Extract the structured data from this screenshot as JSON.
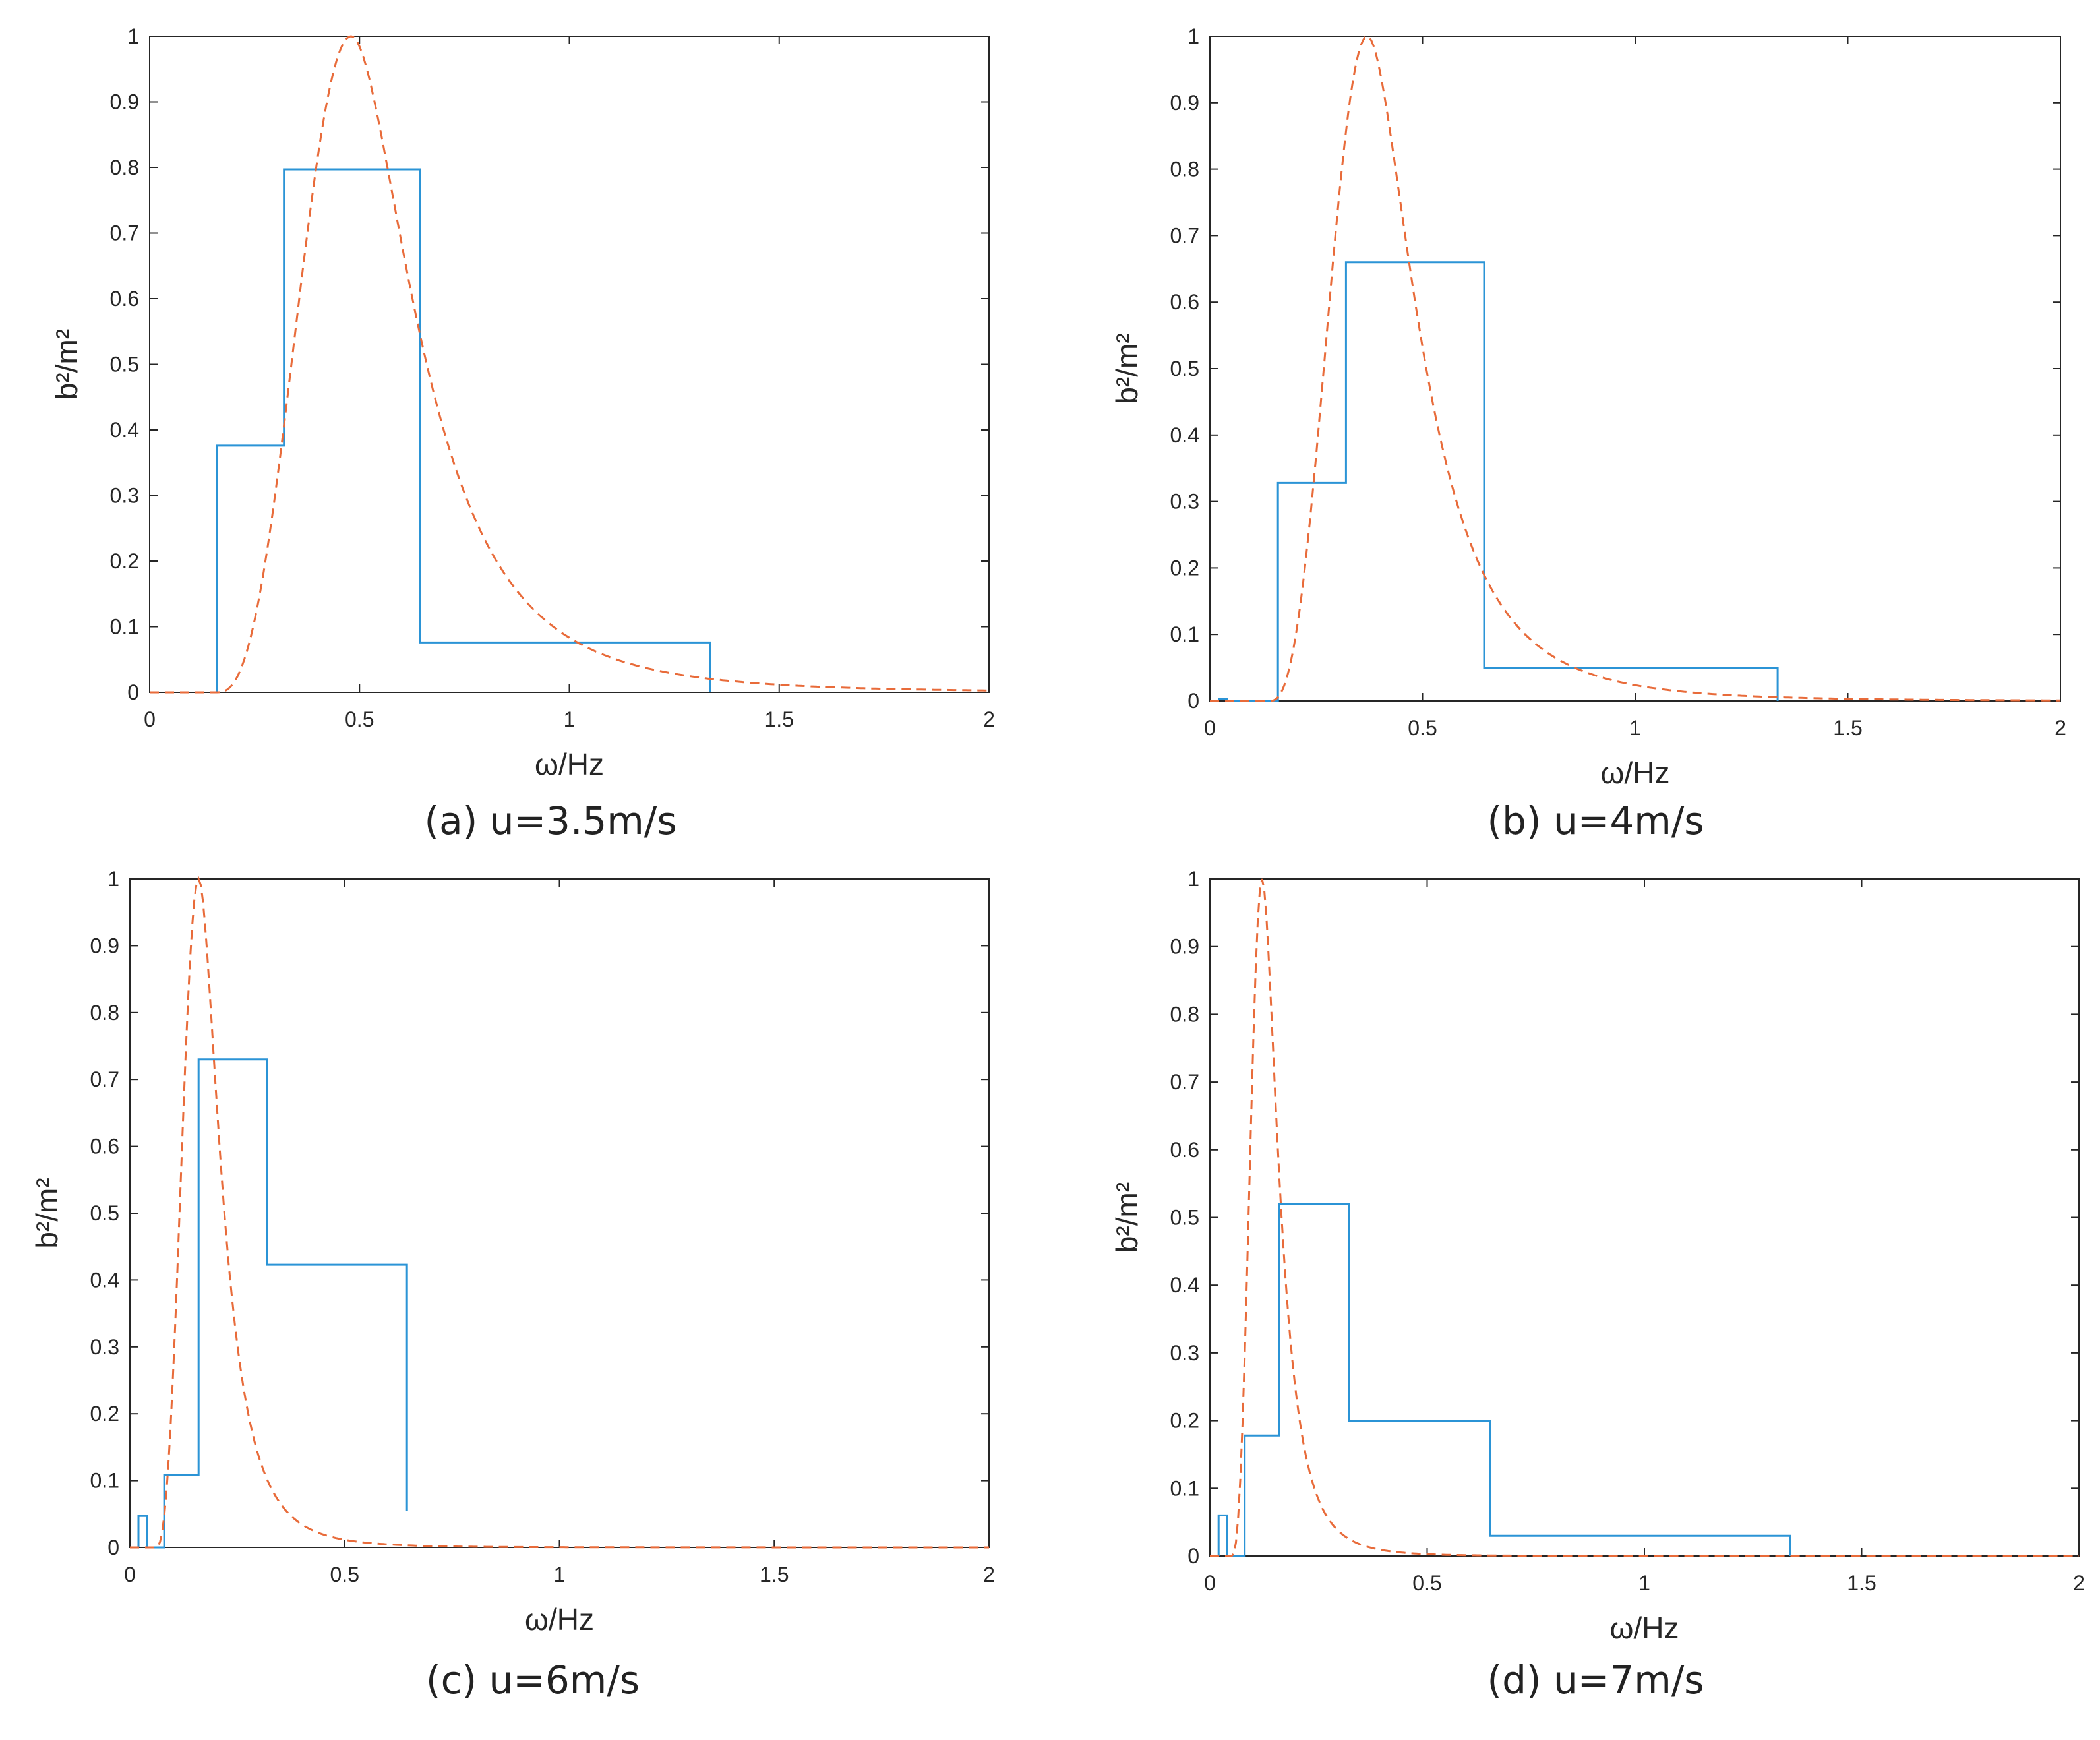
{
  "colors": {
    "step_series": "#2b94d6",
    "curve_series": "#e86b3a",
    "axis": "#262626"
  },
  "chart_data": [
    {
      "type": "line",
      "caption": "(a) u=3.5m/s",
      "xlabel": "ω/Hz",
      "ylabel": "b²/m²",
      "xlim": [
        0,
        2
      ],
      "ylim": [
        0,
        1
      ],
      "xticks": [
        0,
        0.5,
        1,
        1.5,
        2
      ],
      "xtick_labels": [
        "0",
        "0.5",
        "1",
        "1.5",
        "2"
      ],
      "yticks": [
        0,
        0.1,
        0.2,
        0.3,
        0.4,
        0.5,
        0.6,
        0.7,
        0.8,
        0.9,
        1
      ],
      "ytick_labels": [
        "0",
        "0.1",
        "0.2",
        "0.3",
        "0.4",
        "0.5",
        "0.6",
        "0.7",
        "0.8",
        "0.9",
        "1"
      ],
      "series": [
        {
          "name": "step",
          "style": "solid",
          "x": [
            0.16,
            0.16,
            0.32,
            0.32,
            0.645,
            0.645,
            1.335,
            1.335
          ],
          "y": [
            0,
            0.376,
            0.376,
            0.797,
            0.797,
            0.076,
            0.076,
            0
          ]
        },
        {
          "name": "curve",
          "style": "dashed",
          "peak_x": 0.48,
          "peak_y": 1.0,
          "start_x": 0.16
        }
      ]
    },
    {
      "type": "line",
      "caption": "(b) u=4m/s",
      "xlabel": "ω/Hz",
      "ylabel": "b²/m²",
      "xlim": [
        0,
        2
      ],
      "ylim": [
        0,
        1
      ],
      "xticks": [
        0,
        0.5,
        1,
        1.5,
        2
      ],
      "xtick_labels": [
        "0",
        "0.5",
        "1",
        "1.5",
        "2"
      ],
      "yticks": [
        0,
        0.1,
        0.2,
        0.3,
        0.4,
        0.5,
        0.6,
        0.7,
        0.8,
        0.9,
        1
      ],
      "ytick_labels": [
        "0",
        "0.1",
        "0.2",
        "0.3",
        "0.4",
        "0.5",
        "0.6",
        "0.7",
        "0.8",
        "0.9",
        "1"
      ],
      "series": [
        {
          "name": "step",
          "style": "solid",
          "x": [
            0.02,
            0.04,
            0.04,
            0.16,
            0.16,
            0.32,
            0.32,
            0.645,
            0.645,
            1.335,
            1.335
          ],
          "y": [
            0.003,
            0.003,
            0,
            0,
            0.328,
            0.328,
            0.66,
            0.66,
            0.05,
            0.05,
            0
          ]
        },
        {
          "name": "curve",
          "style": "dashed",
          "peak_x": 0.37,
          "peak_y": 1.0,
          "start_x": 0.14
        }
      ]
    },
    {
      "type": "line",
      "caption": "(c) u=6m/s",
      "xlabel": "ω/Hz",
      "ylabel": "b²/m²",
      "xlim": [
        0,
        2
      ],
      "ylim": [
        0,
        1
      ],
      "xticks": [
        0,
        0.5,
        1,
        1.5,
        2
      ],
      "xtick_labels": [
        "0",
        "0.5",
        "1",
        "1.5",
        "2"
      ],
      "yticks": [
        0,
        0.1,
        0.2,
        0.3,
        0.4,
        0.5,
        0.6,
        0.7,
        0.8,
        0.9,
        1
      ],
      "ytick_labels": [
        "0",
        "0.1",
        "0.2",
        "0.3",
        "0.4",
        "0.5",
        "0.6",
        "0.7",
        "0.8",
        "0.9",
        "1"
      ],
      "series": [
        {
          "name": "step",
          "style": "solid",
          "x": [
            0.02,
            0.02,
            0.04,
            0.04,
            0.08,
            0.08,
            0.16,
            0.16,
            0.32,
            0.32,
            0.645,
            0.645
          ],
          "y": [
            0,
            0.047,
            0.047,
            0,
            0,
            0.109,
            0.109,
            0.73,
            0.73,
            0.423,
            0.423,
            0.055
          ]
        },
        {
          "name": "curve",
          "style": "dashed",
          "peak_x": 0.16,
          "peak_y": 1.0,
          "start_x": 0.06
        }
      ]
    },
    {
      "type": "line",
      "caption": "(d) u=7m/s",
      "xlabel": "ω/Hz",
      "ylabel": "b²/m²",
      "xlim": [
        0,
        2
      ],
      "ylim": [
        0,
        1
      ],
      "xticks": [
        0,
        0.5,
        1,
        1.5,
        2
      ],
      "xtick_labels": [
        "0",
        "0.5",
        "1",
        "1.5",
        "2"
      ],
      "yticks": [
        0,
        0.1,
        0.2,
        0.3,
        0.4,
        0.5,
        0.6,
        0.7,
        0.8,
        0.9,
        1
      ],
      "ytick_labels": [
        "0",
        "0.1",
        "0.2",
        "0.3",
        "0.4",
        "0.5",
        "0.6",
        "0.7",
        "0.8",
        "0.9",
        "1"
      ],
      "series": [
        {
          "name": "step",
          "style": "solid",
          "x": [
            0.02,
            0.02,
            0.04,
            0.04,
            0.08,
            0.08,
            0.16,
            0.16,
            0.32,
            0.32,
            0.645,
            0.645,
            1.335,
            1.335
          ],
          "y": [
            0,
            0.06,
            0.06,
            0,
            0,
            0.178,
            0.178,
            0.52,
            0.52,
            0.2,
            0.2,
            0.03,
            0.03,
            0
          ]
        },
        {
          "name": "curve",
          "style": "dashed",
          "peak_x": 0.12,
          "peak_y": 1.0,
          "start_x": 0.05
        }
      ]
    }
  ]
}
